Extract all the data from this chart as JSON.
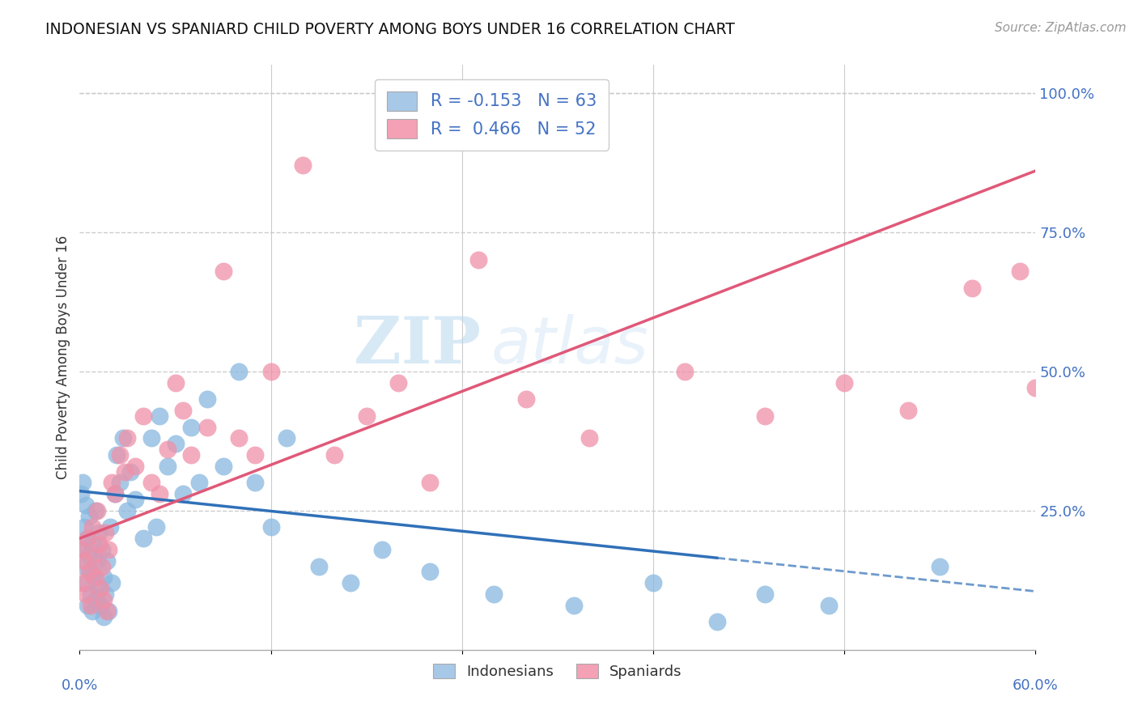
{
  "title": "INDONESIAN VS SPANIARD CHILD POVERTY AMONG BOYS UNDER 16 CORRELATION CHART",
  "source": "Source: ZipAtlas.com",
  "ylabel": "Child Poverty Among Boys Under 16",
  "ytick_labels": [
    "25.0%",
    "50.0%",
    "75.0%",
    "100.0%"
  ],
  "ytick_values": [
    0.25,
    0.5,
    0.75,
    1.0
  ],
  "legend_entries": [
    {
      "label": "R = -0.153   N = 63",
      "color": "#a8c8e8"
    },
    {
      "label": "R =  0.466   N = 52",
      "color": "#f4a0b5"
    }
  ],
  "legend_labels": [
    "Indonesians",
    "Spaniards"
  ],
  "indonesian_color": "#89b8e0",
  "spaniard_color": "#f090a8",
  "indonesian_line_color": "#3070b8",
  "spaniard_line_color": "#e05878",
  "watermark_zip": "ZIP",
  "watermark_atlas": "atlas",
  "background_color": "#ffffff",
  "grid_color": "#cccccc",
  "axis_label_color": "#4472c4",
  "indonesians_x": [
    0.001,
    0.002,
    0.002,
    0.003,
    0.003,
    0.004,
    0.004,
    0.005,
    0.005,
    0.006,
    0.006,
    0.007,
    0.007,
    0.008,
    0.008,
    0.009,
    0.01,
    0.01,
    0.011,
    0.012,
    0.012,
    0.013,
    0.014,
    0.015,
    0.015,
    0.016,
    0.017,
    0.018,
    0.019,
    0.02,
    0.022,
    0.023,
    0.025,
    0.027,
    0.03,
    0.032,
    0.035,
    0.04,
    0.045,
    0.048,
    0.05,
    0.055,
    0.06,
    0.065,
    0.07,
    0.075,
    0.08,
    0.09,
    0.1,
    0.11,
    0.12,
    0.13,
    0.15,
    0.17,
    0.19,
    0.22,
    0.26,
    0.31,
    0.36,
    0.4,
    0.43,
    0.47,
    0.54
  ],
  "indonesians_y": [
    0.28,
    0.3,
    0.18,
    0.22,
    0.15,
    0.26,
    0.12,
    0.2,
    0.08,
    0.17,
    0.24,
    0.14,
    0.1,
    0.19,
    0.07,
    0.13,
    0.25,
    0.09,
    0.16,
    0.11,
    0.21,
    0.08,
    0.18,
    0.13,
    0.06,
    0.1,
    0.16,
    0.07,
    0.22,
    0.12,
    0.28,
    0.35,
    0.3,
    0.38,
    0.25,
    0.32,
    0.27,
    0.2,
    0.38,
    0.22,
    0.42,
    0.33,
    0.37,
    0.28,
    0.4,
    0.3,
    0.45,
    0.33,
    0.5,
    0.3,
    0.22,
    0.38,
    0.15,
    0.12,
    0.18,
    0.14,
    0.1,
    0.08,
    0.12,
    0.05,
    0.1,
    0.08,
    0.15
  ],
  "spaniards_x": [
    0.001,
    0.002,
    0.003,
    0.004,
    0.005,
    0.006,
    0.007,
    0.008,
    0.009,
    0.01,
    0.011,
    0.012,
    0.013,
    0.014,
    0.015,
    0.016,
    0.017,
    0.018,
    0.02,
    0.022,
    0.025,
    0.028,
    0.03,
    0.035,
    0.04,
    0.045,
    0.05,
    0.055,
    0.06,
    0.065,
    0.07,
    0.08,
    0.09,
    0.1,
    0.11,
    0.12,
    0.14,
    0.16,
    0.18,
    0.2,
    0.22,
    0.25,
    0.28,
    0.32,
    0.38,
    0.43,
    0.48,
    0.52,
    0.56,
    0.59,
    0.6,
    0.61
  ],
  "spaniards_y": [
    0.18,
    0.12,
    0.16,
    0.1,
    0.2,
    0.14,
    0.08,
    0.22,
    0.17,
    0.13,
    0.25,
    0.19,
    0.11,
    0.15,
    0.09,
    0.21,
    0.07,
    0.18,
    0.3,
    0.28,
    0.35,
    0.32,
    0.38,
    0.33,
    0.42,
    0.3,
    0.28,
    0.36,
    0.48,
    0.43,
    0.35,
    0.4,
    0.68,
    0.38,
    0.35,
    0.5,
    0.87,
    0.35,
    0.42,
    0.48,
    0.3,
    0.7,
    0.45,
    0.38,
    0.5,
    0.42,
    0.48,
    0.43,
    0.65,
    0.68,
    0.47,
    0.45
  ],
  "xlim": [
    0.0,
    0.6
  ],
  "ylim": [
    0.0,
    1.05
  ],
  "ind_line_x_solid_end": 0.4,
  "ind_line_intercept": 0.285,
  "ind_line_slope": -0.3,
  "spa_line_intercept": 0.2,
  "spa_line_slope": 1.1
}
